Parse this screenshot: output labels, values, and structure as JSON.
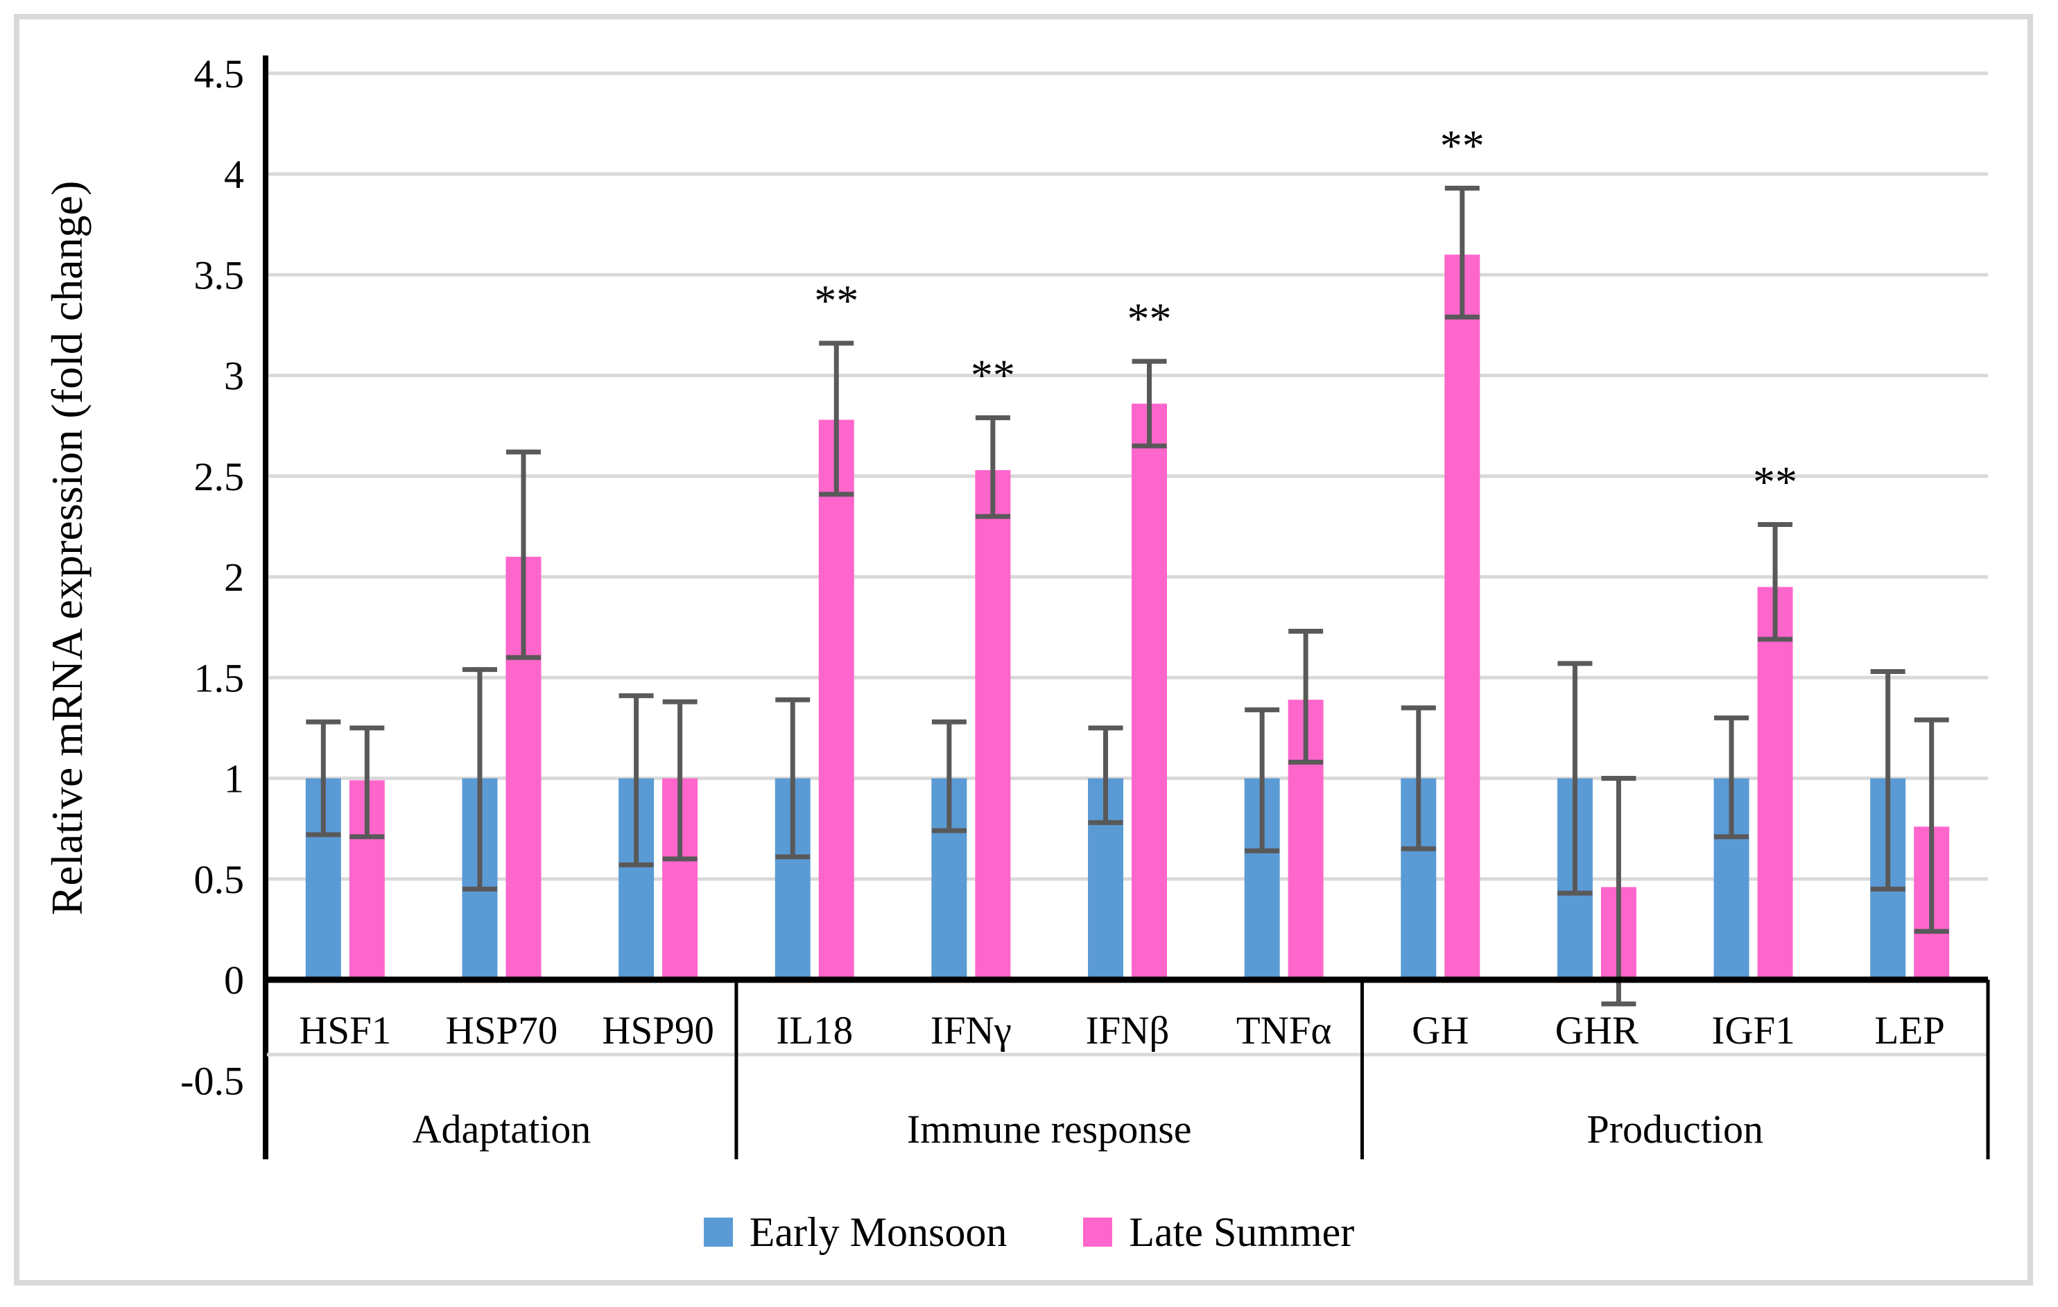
{
  "chart_data": {
    "type": "bar",
    "title": "",
    "ylabel": "Relative mRNA expression (fold change)",
    "ylim": [
      -0.5,
      4.5
    ],
    "ytick_step": 0.5,
    "yticks": [
      "4.5",
      "4",
      "3.5",
      "3",
      "2.5",
      "2",
      "1.5",
      "1",
      "0.5",
      "0",
      "-0.5"
    ],
    "grid": "horizontal",
    "categories": [
      "HSF1",
      "HSP70",
      "HSP90",
      "IL18",
      "IFNγ",
      "IFNβ",
      "TNFα",
      "GH",
      "GHR",
      "IGF1",
      "LEP"
    ],
    "groups": [
      {
        "label": "Adaptation",
        "span": 3
      },
      {
        "label": "Immune response",
        "span": 4
      },
      {
        "label": "Production",
        "span": 4
      }
    ],
    "series": [
      {
        "name": "Early Monsoon",
        "color": "#5B9BD5",
        "values": [
          1.0,
          1.0,
          1.0,
          1.0,
          1.0,
          1.0,
          1.0,
          1.0,
          1.0,
          1.0,
          1.0
        ],
        "err_low": [
          0.72,
          0.45,
          0.57,
          0.61,
          0.74,
          0.78,
          0.64,
          0.65,
          0.43,
          0.71,
          0.45
        ],
        "err_high": [
          1.28,
          1.54,
          1.41,
          1.39,
          1.28,
          1.25,
          1.34,
          1.35,
          1.57,
          1.3,
          1.53
        ]
      },
      {
        "name": "Late Summer",
        "color": "#FF66CC",
        "values": [
          0.99,
          2.1,
          1.0,
          2.78,
          2.53,
          2.86,
          1.39,
          3.6,
          0.46,
          1.95,
          0.76
        ],
        "err_low": [
          0.71,
          1.6,
          0.6,
          2.41,
          2.3,
          2.65,
          1.08,
          3.29,
          -0.12,
          1.69,
          0.24
        ],
        "err_high": [
          1.25,
          2.62,
          1.38,
          3.16,
          2.79,
          3.07,
          1.73,
          3.93,
          1.0,
          2.26,
          1.29
        ]
      }
    ],
    "significance_symbol": "**",
    "significance_on_late_summer": [
      false,
      false,
      false,
      true,
      true,
      true,
      false,
      true,
      false,
      true,
      false
    ],
    "legend_position": "bottom",
    "colors": {
      "early_monsoon": "#5B9BD5",
      "late_summer": "#FF66CC",
      "error_bar": "#595959",
      "gridline": "#d9d9d9",
      "axis": "#000000",
      "frame_border": "#d9d9d9"
    }
  },
  "legend": {
    "items": [
      {
        "label": "Early Monsoon",
        "color": "#5B9BD5"
      },
      {
        "label": "Late Summer",
        "color": "#FF66CC"
      }
    ]
  }
}
